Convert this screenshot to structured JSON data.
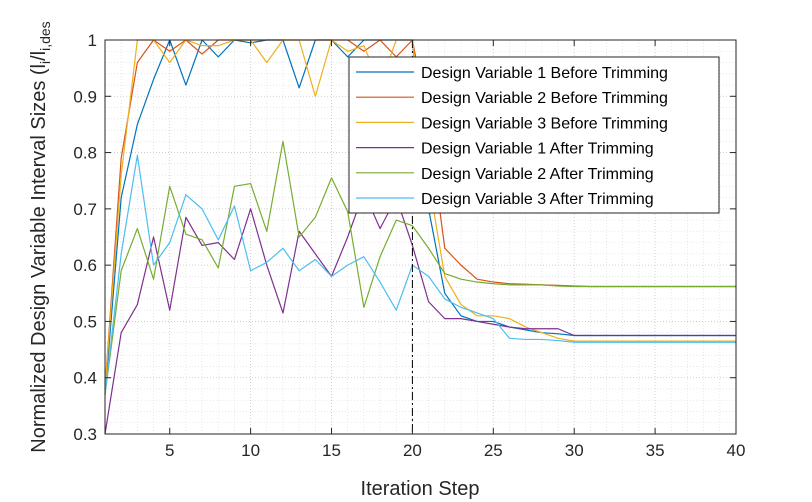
{
  "chart_data": {
    "type": "line",
    "xlabel": "Iteration Step",
    "ylabel": "Normalized Design Variable Interval Sizes (l_i/l_i,des)",
    "ylabel_main": "Normalized Design Variable Interval Sizes (l",
    "ylabel_sub1": "i",
    "ylabel_mid": "/l",
    "ylabel_sub2": "i,des",
    "xlim": [
      1,
      40
    ],
    "ylim": [
      0.3,
      1.0
    ],
    "xticks": [
      5,
      10,
      15,
      20,
      25,
      30,
      35,
      40
    ],
    "yticks": [
      0.3,
      0.4,
      0.5,
      0.6,
      0.7,
      0.8,
      0.9,
      1.0
    ],
    "ytick_labels": [
      "0.3",
      "0.4",
      "0.5",
      "0.6",
      "0.7",
      "0.8",
      "0.9",
      "1"
    ],
    "grid": true,
    "minor_grid": true,
    "legend_position": "top-right",
    "vline": {
      "x": 20,
      "style": "dash-dot",
      "color": "#000000"
    },
    "x": [
      1,
      2,
      3,
      4,
      5,
      6,
      7,
      8,
      9,
      10,
      11,
      12,
      13,
      14,
      15,
      16,
      17,
      18,
      19,
      20,
      21,
      22,
      23,
      24,
      25,
      26,
      27,
      28,
      29,
      30,
      31,
      32,
      33,
      34,
      35,
      36,
      37,
      38,
      39,
      40
    ],
    "series": [
      {
        "name": "Design Variable 1 Before Trimming",
        "color": "#0072BD",
        "values": [
          0.37,
          0.72,
          0.85,
          0.93,
          1.0,
          0.92,
          1.0,
          0.97,
          1.0,
          0.995,
          1.0,
          1.0,
          0.915,
          1.0,
          1.0,
          0.97,
          1.0,
          1.0,
          1.0,
          1.0,
          0.7,
          0.55,
          0.51,
          0.5,
          0.5,
          0.49,
          0.485,
          0.48,
          0.478,
          0.475,
          0.475,
          0.475,
          0.475,
          0.475,
          0.475,
          0.475,
          0.475,
          0.475,
          0.475,
          0.475
        ]
      },
      {
        "name": "Design Variable 2 Before Trimming",
        "color": "#D95319",
        "values": [
          0.38,
          0.79,
          0.96,
          1.0,
          0.98,
          1.0,
          0.975,
          1.0,
          1.0,
          1.0,
          1.0,
          1.0,
          1.0,
          1.0,
          1.0,
          1.0,
          0.98,
          1.0,
          0.97,
          1.0,
          0.85,
          0.63,
          0.6,
          0.575,
          0.57,
          0.567,
          0.566,
          0.565,
          0.564,
          0.563,
          0.562,
          0.562,
          0.562,
          0.562,
          0.562,
          0.562,
          0.562,
          0.562,
          0.562,
          0.562
        ]
      },
      {
        "name": "Design Variable 3 Before Trimming",
        "color": "#EDB120",
        "values": [
          0.38,
          0.76,
          1.0,
          1.0,
          0.96,
          1.0,
          0.99,
          0.99,
          1.0,
          1.0,
          0.96,
          1.0,
          1.0,
          0.9,
          1.0,
          0.98,
          0.99,
          0.92,
          1.0,
          1.0,
          0.75,
          0.58,
          0.53,
          0.51,
          0.51,
          0.505,
          0.49,
          0.48,
          0.47,
          0.465,
          0.465,
          0.465,
          0.465,
          0.465,
          0.465,
          0.465,
          0.465,
          0.465,
          0.465,
          0.465
        ]
      },
      {
        "name": "Design Variable 1 After Trimming",
        "color": "#7E2F8E",
        "values": [
          0.3,
          0.48,
          0.53,
          0.65,
          0.52,
          0.685,
          0.635,
          0.64,
          0.61,
          0.7,
          0.6,
          0.515,
          0.66,
          0.62,
          0.58,
          0.65,
          0.73,
          0.665,
          0.72,
          0.635,
          0.535,
          0.505,
          0.505,
          0.5,
          0.495,
          0.49,
          0.487,
          0.487,
          0.487,
          0.475,
          0.475,
          0.475,
          0.475,
          0.475,
          0.475,
          0.475,
          0.475,
          0.475,
          0.475,
          0.475
        ]
      },
      {
        "name": "Design Variable 2 After Trimming",
        "color": "#77AC30",
        "values": [
          0.37,
          0.59,
          0.665,
          0.575,
          0.74,
          0.655,
          0.645,
          0.595,
          0.74,
          0.745,
          0.66,
          0.82,
          0.65,
          0.685,
          0.755,
          0.695,
          0.525,
          0.615,
          0.68,
          0.67,
          0.63,
          0.585,
          0.575,
          0.57,
          0.567,
          0.565,
          0.565,
          0.565,
          0.563,
          0.562,
          0.562,
          0.562,
          0.562,
          0.562,
          0.562,
          0.562,
          0.562,
          0.562,
          0.562,
          0.562
        ]
      },
      {
        "name": "Design Variable 3 After Trimming",
        "color": "#4DBEEE",
        "values": [
          0.37,
          0.62,
          0.795,
          0.6,
          0.64,
          0.725,
          0.7,
          0.645,
          0.705,
          0.59,
          0.605,
          0.63,
          0.59,
          0.61,
          0.58,
          0.6,
          0.615,
          0.57,
          0.52,
          0.6,
          0.58,
          0.54,
          0.525,
          0.515,
          0.505,
          0.47,
          0.468,
          0.468,
          0.466,
          0.463,
          0.463,
          0.463,
          0.463,
          0.463,
          0.463,
          0.463,
          0.463,
          0.463,
          0.463,
          0.463
        ]
      }
    ]
  }
}
